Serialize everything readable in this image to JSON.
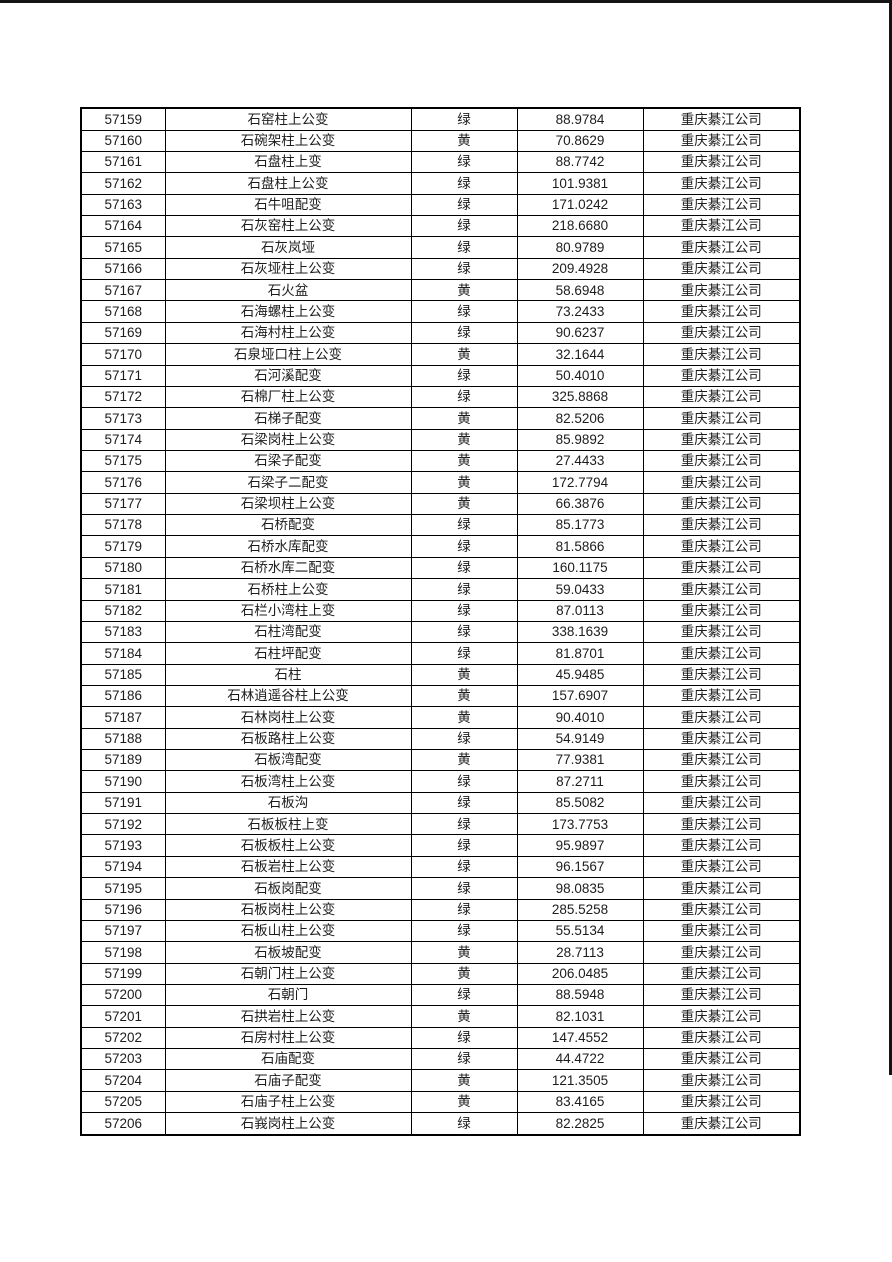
{
  "page": {
    "background_color": "#ffffff",
    "scan_edge_color": "#141414",
    "text_color": "#1c1c1c",
    "grid_line_color": "#000000"
  },
  "table": {
    "column_keys": [
      "id",
      "name",
      "status",
      "value",
      "company"
    ],
    "status_values_seen": [
      "绿",
      "黄"
    ],
    "rows": [
      [
        "57159",
        "石窑柱上公变",
        "绿",
        "88.9784",
        "重庆綦江公司"
      ],
      [
        "57160",
        "石碗架柱上公变",
        "黄",
        "70.8629",
        "重庆綦江公司"
      ],
      [
        "57161",
        "石盘柱上变",
        "绿",
        "88.7742",
        "重庆綦江公司"
      ],
      [
        "57162",
        "石盘柱上公变",
        "绿",
        "101.9381",
        "重庆綦江公司"
      ],
      [
        "57163",
        "石牛咀配变",
        "绿",
        "171.0242",
        "重庆綦江公司"
      ],
      [
        "57164",
        "石灰窑柱上公变",
        "绿",
        "218.6680",
        "重庆綦江公司"
      ],
      [
        "57165",
        "石灰岚垭",
        "绿",
        "80.9789",
        "重庆綦江公司"
      ],
      [
        "57166",
        "石灰垭柱上公变",
        "绿",
        "209.4928",
        "重庆綦江公司"
      ],
      [
        "57167",
        "石火盆",
        "黄",
        "58.6948",
        "重庆綦江公司"
      ],
      [
        "57168",
        "石海螺柱上公变",
        "绿",
        "73.2433",
        "重庆綦江公司"
      ],
      [
        "57169",
        "石海村柱上公变",
        "绿",
        "90.6237",
        "重庆綦江公司"
      ],
      [
        "57170",
        "石泉垭口柱上公变",
        "黄",
        "32.1644",
        "重庆綦江公司"
      ],
      [
        "57171",
        "石河溪配变",
        "绿",
        "50.4010",
        "重庆綦江公司"
      ],
      [
        "57172",
        "石棉厂柱上公变",
        "绿",
        "325.8868",
        "重庆綦江公司"
      ],
      [
        "57173",
        "石梯子配变",
        "黄",
        "82.5206",
        "重庆綦江公司"
      ],
      [
        "57174",
        "石梁岗柱上公变",
        "黄",
        "85.9892",
        "重庆綦江公司"
      ],
      [
        "57175",
        "石梁子配变",
        "黄",
        "27.4433",
        "重庆綦江公司"
      ],
      [
        "57176",
        "石梁子二配变",
        "黄",
        "172.7794",
        "重庆綦江公司"
      ],
      [
        "57177",
        "石梁坝柱上公变",
        "黄",
        "66.3876",
        "重庆綦江公司"
      ],
      [
        "57178",
        "石桥配变",
        "绿",
        "85.1773",
        "重庆綦江公司"
      ],
      [
        "57179",
        "石桥水库配变",
        "绿",
        "81.5866",
        "重庆綦江公司"
      ],
      [
        "57180",
        "石桥水库二配变",
        "绿",
        "160.1175",
        "重庆綦江公司"
      ],
      [
        "57181",
        "石桥柱上公变",
        "绿",
        "59.0433",
        "重庆綦江公司"
      ],
      [
        "57182",
        "石栏小湾柱上变",
        "绿",
        "87.0113",
        "重庆綦江公司"
      ],
      [
        "57183",
        "石柱湾配变",
        "绿",
        "338.1639",
        "重庆綦江公司"
      ],
      [
        "57184",
        "石柱坪配变",
        "绿",
        "81.8701",
        "重庆綦江公司"
      ],
      [
        "57185",
        "石柱",
        "黄",
        "45.9485",
        "重庆綦江公司"
      ],
      [
        "57186",
        "石林逍遥谷柱上公变",
        "黄",
        "157.6907",
        "重庆綦江公司"
      ],
      [
        "57187",
        "石林岗柱上公变",
        "黄",
        "90.4010",
        "重庆綦江公司"
      ],
      [
        "57188",
        "石板路柱上公变",
        "绿",
        "54.9149",
        "重庆綦江公司"
      ],
      [
        "57189",
        "石板湾配变",
        "黄",
        "77.9381",
        "重庆綦江公司"
      ],
      [
        "57190",
        "石板湾柱上公变",
        "绿",
        "87.2711",
        "重庆綦江公司"
      ],
      [
        "57191",
        "石板沟",
        "绿",
        "85.5082",
        "重庆綦江公司"
      ],
      [
        "57192",
        "石板板柱上变",
        "绿",
        "173.7753",
        "重庆綦江公司"
      ],
      [
        "57193",
        "石板板柱上公变",
        "绿",
        "95.9897",
        "重庆綦江公司"
      ],
      [
        "57194",
        "石板岩柱上公变",
        "绿",
        "96.1567",
        "重庆綦江公司"
      ],
      [
        "57195",
        "石板岗配变",
        "绿",
        "98.0835",
        "重庆綦江公司"
      ],
      [
        "57196",
        "石板岗柱上公变",
        "绿",
        "285.5258",
        "重庆綦江公司"
      ],
      [
        "57197",
        "石板山柱上公变",
        "绿",
        "55.5134",
        "重庆綦江公司"
      ],
      [
        "57198",
        "石板坡配变",
        "黄",
        "28.7113",
        "重庆綦江公司"
      ],
      [
        "57199",
        "石朝门柱上公变",
        "黄",
        "206.0485",
        "重庆綦江公司"
      ],
      [
        "57200",
        "石朝门",
        "绿",
        "88.5948",
        "重庆綦江公司"
      ],
      [
        "57201",
        "石拱岩柱上公变",
        "黄",
        "82.1031",
        "重庆綦江公司"
      ],
      [
        "57202",
        "石房村柱上公变",
        "绿",
        "147.4552",
        "重庆綦江公司"
      ],
      [
        "57203",
        "石庙配变",
        "绿",
        "44.4722",
        "重庆綦江公司"
      ],
      [
        "57204",
        "石庙子配变",
        "黄",
        "121.3505",
        "重庆綦江公司"
      ],
      [
        "57205",
        "石庙子柱上公变",
        "黄",
        "83.4165",
        "重庆綦江公司"
      ],
      [
        "57206",
        "石峩岗柱上公变",
        "绿",
        "82.2825",
        "重庆綦江公司"
      ]
    ]
  }
}
